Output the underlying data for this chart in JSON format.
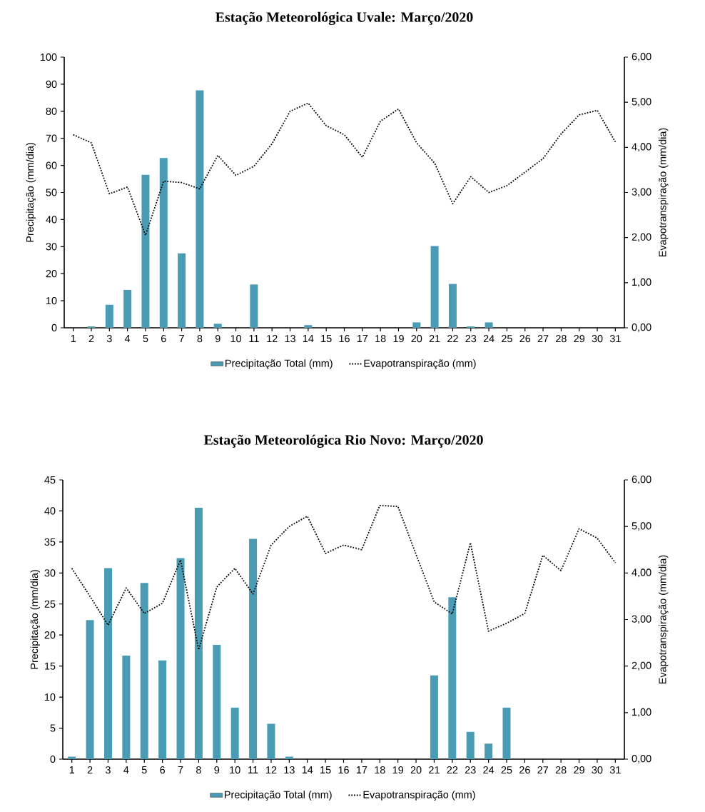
{
  "chart_data": [
    {
      "type": "bar",
      "title": "Estação Meteorológica Uvale: Março/2020",
      "ylabel": "Precipitação (mm/dia)",
      "y2label": "Evapotranspiração (mm/dia)",
      "categories": [
        "1",
        "2",
        "3",
        "4",
        "5",
        "6",
        "7",
        "8",
        "9",
        "10",
        "11",
        "12",
        "13",
        "14",
        "15",
        "16",
        "17",
        "18",
        "19",
        "20",
        "21",
        "22",
        "23",
        "24",
        "25",
        "26",
        "27",
        "28",
        "29",
        "30",
        "31"
      ],
      "series": [
        {
          "name": "Precipitação Total (mm)",
          "color": "#4a9bb4",
          "values": [
            0,
            0.5,
            8.5,
            14,
            56.5,
            62.7,
            27.5,
            87.7,
            1.5,
            0,
            16,
            0,
            0,
            1,
            0,
            0,
            0,
            0,
            0,
            2,
            30.2,
            16.2,
            0.5,
            2,
            0,
            0,
            0,
            0,
            0,
            0,
            0
          ]
        },
        {
          "name": "Evapotranspiração (mm)",
          "type": "line",
          "axis": "y2",
          "color": "#000000",
          "line_style": "dotted",
          "marker": "none",
          "values": [
            4.28,
            4.1,
            2.97,
            3.12,
            2.05,
            3.25,
            3.22,
            3.08,
            3.82,
            3.38,
            3.58,
            4.08,
            4.8,
            4.98,
            4.48,
            4.28,
            3.78,
            4.58,
            4.85,
            4.1,
            3.65,
            2.75,
            3.35,
            3.0,
            3.15,
            3.45,
            3.75,
            4.3,
            4.72,
            4.82,
            4.12
          ]
        }
      ],
      "ylim": [
        0,
        100
      ],
      "yticks": [
        0,
        10,
        20,
        30,
        40,
        50,
        60,
        70,
        80,
        90,
        100
      ],
      "y2lim": [
        0,
        6
      ],
      "y2ticks": [
        {
          "value": 0,
          "label": "0,00"
        },
        {
          "value": 1,
          "label": "1,00"
        },
        {
          "value": 2,
          "label": "2,00"
        },
        {
          "value": 3,
          "label": "3,00"
        },
        {
          "value": 4,
          "label": "4,00"
        },
        {
          "value": 5,
          "label": "5,00"
        },
        {
          "value": 6,
          "label": "6,00"
        }
      ],
      "legend": "bottom"
    },
    {
      "type": "bar",
      "title": "Estação Meteorológica Rio Novo: Março/2020",
      "ylabel": "Precipitação (mm/dia)",
      "y2label": "Evapotranspiração (mm/dia)",
      "categories": [
        "1",
        "2",
        "3",
        "4",
        "5",
        "6",
        "7",
        "8",
        "9",
        "10",
        "11",
        "12",
        "13",
        "14",
        "15",
        "16",
        "17",
        "18",
        "19",
        "20",
        "21",
        "22",
        "23",
        "24",
        "25",
        "26",
        "27",
        "28",
        "29",
        "30",
        "31"
      ],
      "series": [
        {
          "name": "Precipitação Total (mm)",
          "color": "#4a9bb4",
          "values": [
            0.4,
            22.4,
            30.8,
            16.7,
            28.4,
            15.9,
            32.4,
            40.5,
            18.4,
            8.3,
            35.5,
            5.7,
            0.4,
            0,
            0,
            0,
            0,
            0,
            0,
            0,
            13.5,
            26.1,
            4.4,
            2.5,
            8.3,
            0,
            0,
            0,
            0,
            0,
            0
          ]
        },
        {
          "name": "Evapotranspiração (mm)",
          "type": "line",
          "axis": "y2",
          "color": "#000000",
          "line_style": "dotted",
          "marker": "none",
          "values": [
            4.1,
            3.5,
            2.88,
            3.68,
            3.13,
            3.35,
            4.28,
            2.35,
            3.7,
            4.1,
            3.55,
            4.6,
            5.0,
            5.22,
            4.42,
            4.6,
            4.5,
            5.45,
            5.43,
            4.4,
            3.38,
            3.12,
            4.65,
            2.75,
            2.92,
            3.13,
            4.38,
            4.05,
            4.95,
            4.75,
            4.22
          ]
        }
      ],
      "ylim": [
        0,
        45
      ],
      "yticks": [
        0,
        5,
        10,
        15,
        20,
        25,
        30,
        35,
        40,
        45
      ],
      "y2lim": [
        0,
        6
      ],
      "y2ticks": [
        {
          "value": 0,
          "label": "0,00"
        },
        {
          "value": 1,
          "label": "1,00"
        },
        {
          "value": 2,
          "label": "2,00"
        },
        {
          "value": 3,
          "label": "3,00"
        },
        {
          "value": 4,
          "label": "4,00"
        },
        {
          "value": 5,
          "label": "5,00"
        },
        {
          "value": 6,
          "label": "6,00"
        }
      ],
      "legend": "bottom"
    }
  ]
}
